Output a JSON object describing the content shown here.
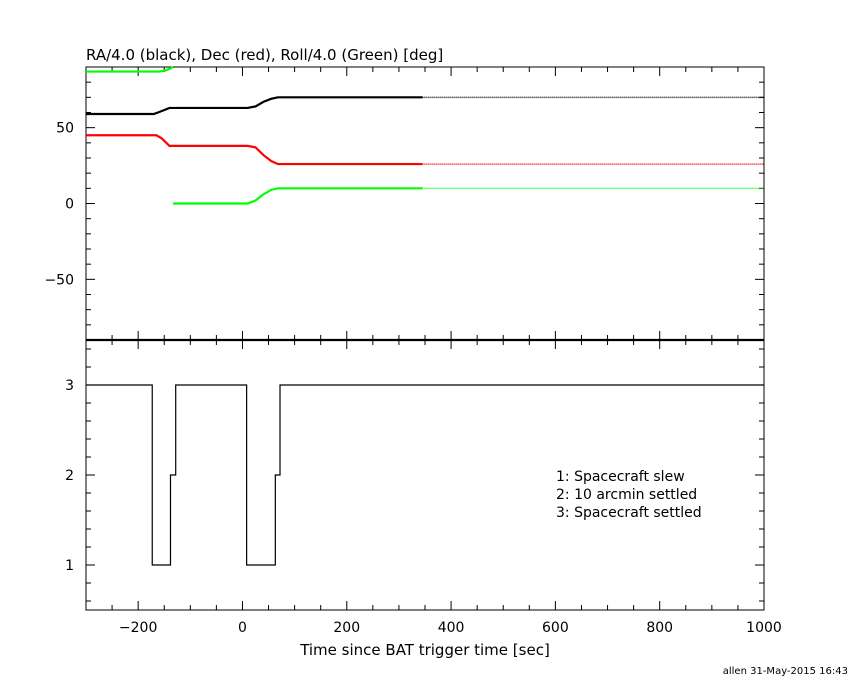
{
  "chart_data": [
    {
      "type": "line",
      "title": "RA/4.0 (black), Dec (red), Roll/4.0 (Green) [deg]",
      "xlim": [
        -300,
        1000
      ],
      "ylim": [
        -90,
        90
      ],
      "yticks": [
        -50,
        0,
        50
      ],
      "grid": false,
      "series": [
        {
          "color": "#000000",
          "style_after_x": 345,
          "x": [
            -300,
            -170,
            -162,
            -140,
            10,
            25,
            40,
            55,
            68,
            1000
          ],
          "y": [
            59,
            59,
            60,
            63,
            63,
            64,
            67,
            69,
            70,
            70
          ]
        },
        {
          "color": "#ff0000",
          "style_after_x": 345,
          "x": [
            -300,
            -165,
            -155,
            -140,
            10,
            25,
            40,
            55,
            68,
            1000
          ],
          "y": [
            45,
            45,
            43,
            38,
            38,
            37,
            32,
            28,
            26,
            26
          ]
        },
        {
          "color": "#00ff00",
          "style_after_x": 345,
          "x": [
            -300,
            -160,
            -145,
            -133
          ],
          "y": [
            87,
            87,
            88,
            90
          ]
        },
        {
          "color": "#00ff00",
          "style_after_x": 345,
          "x": [
            -133,
            10,
            25,
            40,
            55,
            68,
            1000
          ],
          "y": [
            0,
            0,
            2,
            6,
            9,
            10,
            10
          ]
        }
      ]
    },
    {
      "type": "line",
      "xlabel": "Time since BAT trigger time [sec]",
      "xlim": [
        -300,
        1000
      ],
      "ylim": [
        0.5,
        3.5
      ],
      "xticks": [
        -200,
        0,
        200,
        400,
        600,
        800,
        1000
      ],
      "yticks": [
        1,
        2,
        3
      ],
      "grid": false,
      "series": [
        {
          "color": "#000000",
          "step": true,
          "x": [
            -300,
            -173,
            -138,
            -128,
            8,
            63,
            72,
            1000
          ],
          "y": [
            3,
            1,
            2,
            3,
            1,
            2,
            3,
            3
          ]
        }
      ],
      "annotations": [
        "1: Spacecraft slew",
        "2: 10 arcmin settled",
        "3: Spacecraft settled"
      ]
    }
  ],
  "footer": "allen 31-May-2015 16:43"
}
